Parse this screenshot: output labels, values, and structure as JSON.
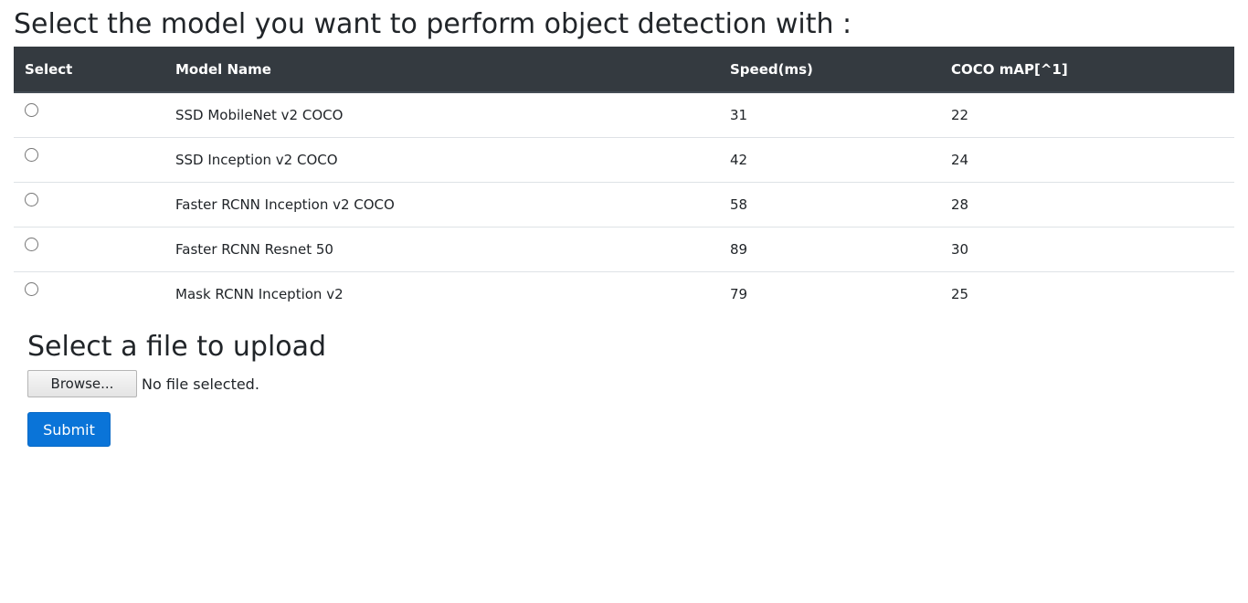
{
  "page": {
    "title": "Select the model you want to perform object detection with :"
  },
  "table": {
    "headers": {
      "select": "Select",
      "model_name": "Model Name",
      "speed": "Speed(ms)",
      "map": "COCO mAP[^1]"
    },
    "rows": [
      {
        "model_name": "SSD MobileNet v2 COCO",
        "speed": "31",
        "map": "22",
        "selected": false
      },
      {
        "model_name": "SSD Inception v2 COCO",
        "speed": "42",
        "map": "24",
        "selected": false
      },
      {
        "model_name": "Faster RCNN Inception v2 COCO",
        "speed": "58",
        "map": "28",
        "selected": false
      },
      {
        "model_name": "Faster RCNN Resnet 50",
        "speed": "89",
        "map": "30",
        "selected": false
      },
      {
        "model_name": "Mask RCNN Inception v2",
        "speed": "79",
        "map": "25",
        "selected": false
      }
    ]
  },
  "upload": {
    "title": "Select a file to upload",
    "browse_label": "Browse...",
    "file_status": "No file selected.",
    "submit_label": "Submit"
  },
  "colors": {
    "header_bg": "#343a40",
    "accent": "#0a74d8"
  }
}
